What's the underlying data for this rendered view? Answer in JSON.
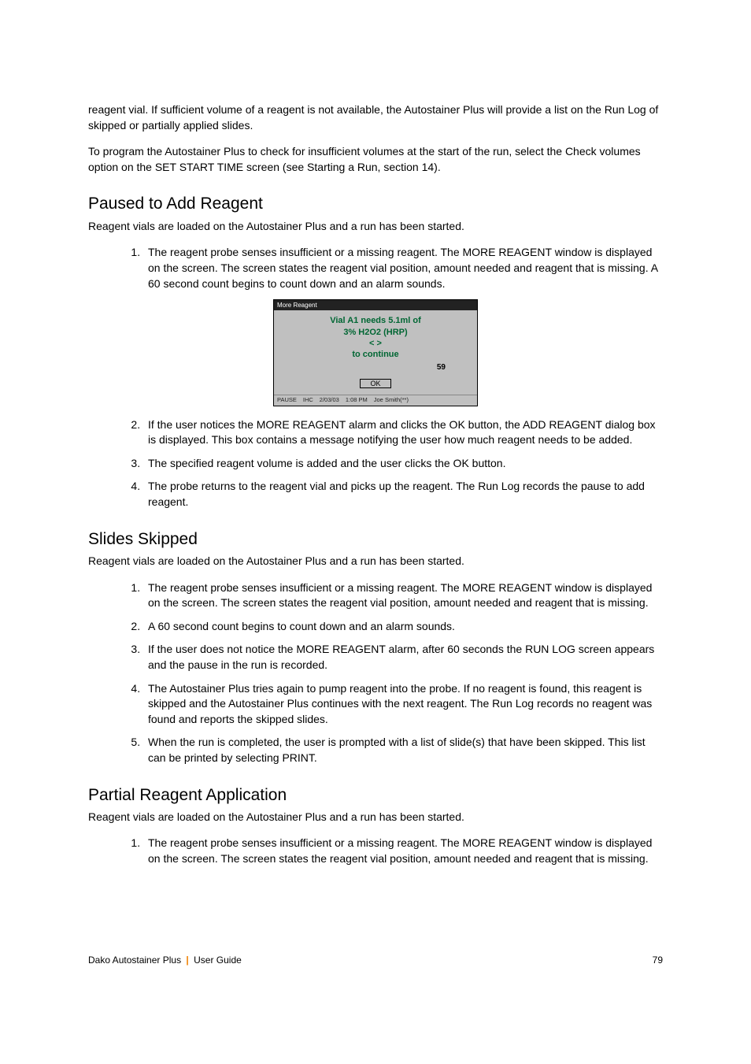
{
  "intro1": "reagent vial. If sufficient volume of a reagent is not available, the Autostainer Plus will provide a list on the Run Log of skipped or partially applied slides.",
  "intro2": "To program the Autostainer Plus to check for insufficient volumes at the start of the run, select the Check volumes option on the SET START TIME screen (see Starting a Run, section 14).",
  "section1": {
    "title": "Paused to Add Reagent",
    "lead": "Reagent vials are loaded on the Autostainer Plus and a run has been started.",
    "items": [
      "The reagent probe senses insufficient or a missing reagent. The MORE REAGENT window is displayed on the screen. The screen states the reagent vial position, amount needed and reagent that is missing. A 60 second count begins to count down and an alarm sounds.",
      "If the user notices the MORE REAGENT alarm and clicks the OK button, the ADD REAGENT dialog box is displayed. This box contains a message notifying the user how much reagent needs to be added.",
      "The specified reagent volume is added and the user clicks the OK button.",
      "The probe returns to the reagent vial and picks up the reagent. The Run Log records the pause to add reagent."
    ]
  },
  "screenshot": {
    "titlebar": "More Reagent",
    "line1": "Vial A1  needs 5.1ml of",
    "line2": "3% H2O2 (HRP)",
    "line3": "< >",
    "line4": "to continue",
    "countdown": "59",
    "ok": "OK",
    "status": {
      "state": "PAUSE",
      "unit": "IHC",
      "date": "2/03/03",
      "time": "1:08 PM",
      "user": "Joe Smith(**)"
    }
  },
  "section2": {
    "title": "Slides Skipped",
    "lead": "Reagent vials are loaded on the Autostainer Plus and a run has been started.",
    "items": [
      "The reagent probe senses insufficient or a missing reagent. The MORE REAGENT window is displayed on the screen. The screen states the reagent vial position, amount needed and reagent that is missing.",
      "A 60 second count begins to count down and an alarm sounds.",
      "If the user does not notice the MORE REAGENT alarm, after 60 seconds the RUN LOG screen appears and the pause in the run is recorded.",
      "The Autostainer Plus tries again to pump reagent into the probe. If no reagent is found, this reagent is skipped and the Autostainer Plus continues with the next reagent. The Run Log records no reagent was found and reports the skipped slides.",
      "When the run is completed, the user is prompted with a list of slide(s) that have been skipped. This list can be printed by selecting PRINT."
    ]
  },
  "section3": {
    "title": "Partial Reagent Application",
    "lead": "Reagent vials are loaded on the Autostainer Plus and a run has been started.",
    "items": [
      "The reagent probe senses insufficient or a missing reagent. The MORE REAGENT window is displayed on the screen. The screen states the reagent vial position, amount needed and reagent that is missing."
    ]
  },
  "footer": {
    "product": "Dako Autostainer Plus",
    "doc": "User Guide",
    "page": "79"
  }
}
